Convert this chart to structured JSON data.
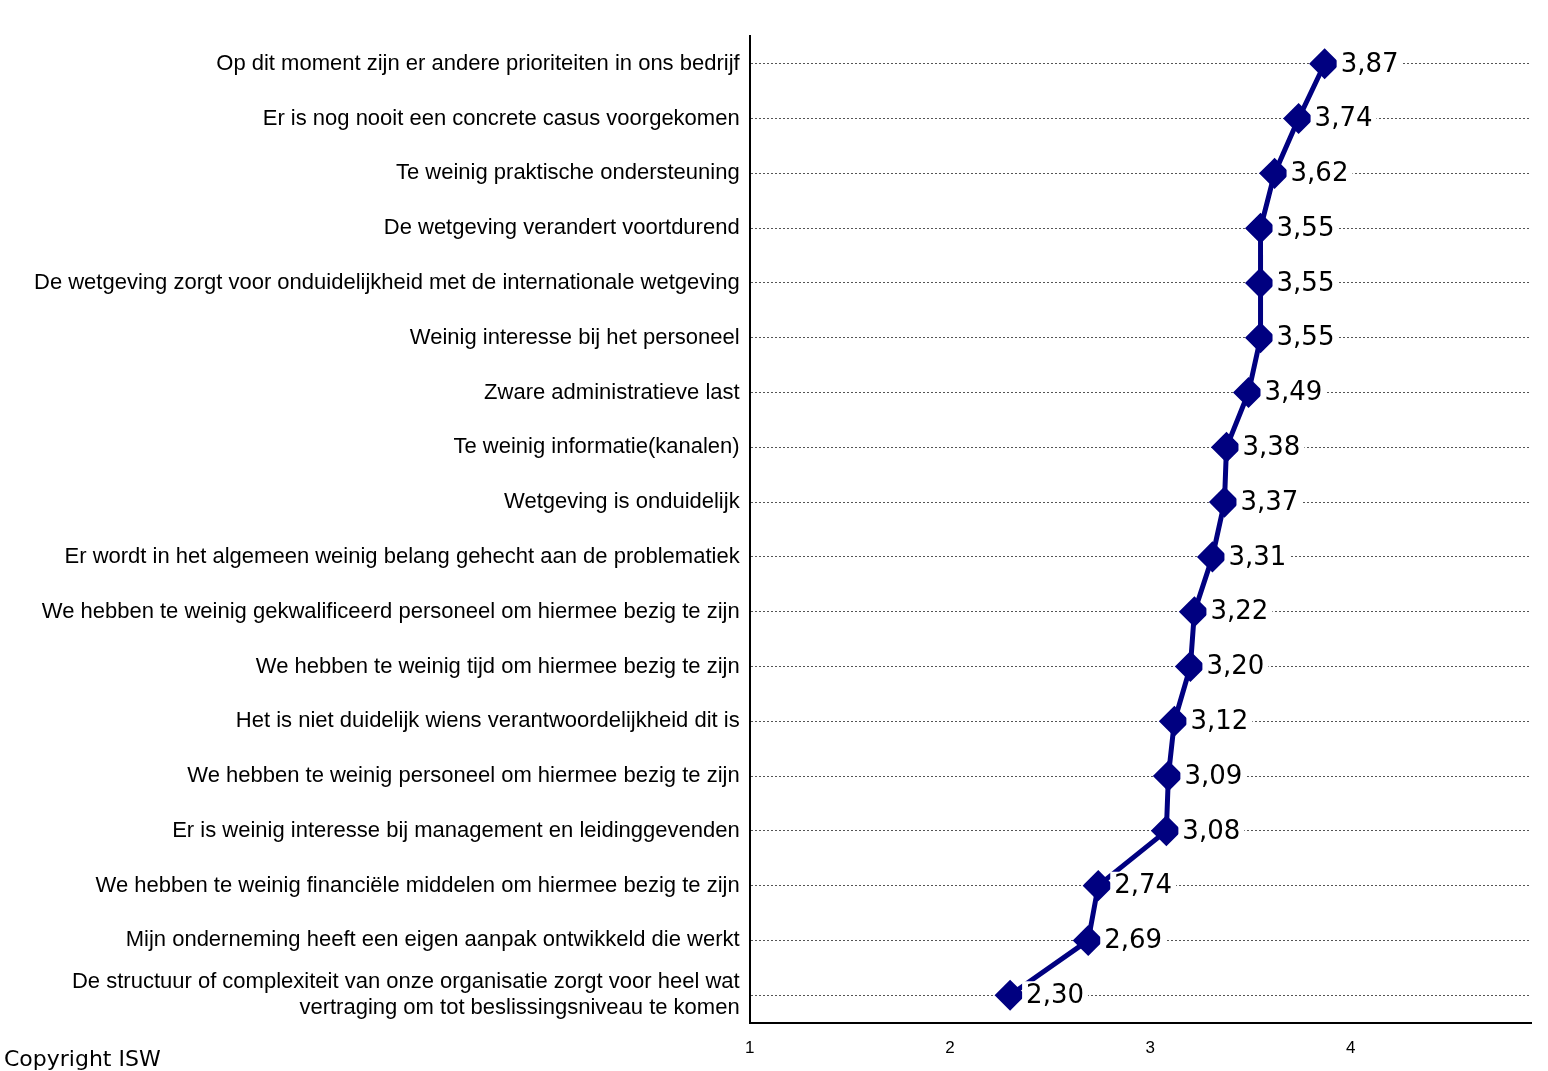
{
  "chart_data": {
    "type": "line",
    "orientation": "horizontal",
    "categories": [
      "Op dit moment zijn er andere prioriteiten in ons bedrijf",
      "Er is nog nooit een concrete casus voorgekomen",
      "Te weinig praktische ondersteuning",
      "De wetgeving verandert voortdurend",
      "De wetgeving zorgt voor onduidelijkheid met de internationale wetgeving",
      "Weinig interesse bij het personeel",
      "Zware administratieve last",
      "Te weinig informatie(kanalen)",
      "Wetgeving is onduidelijk",
      "Er wordt in het algemeen weinig belang gehecht aan de problematiek",
      "We hebben te weinig gekwalificeerd personeel om hiermee bezig te zijn",
      "We hebben te weinig tijd om hiermee bezig te zijn",
      "Het is niet duidelijk wiens verantwoordelijkheid dit is",
      "We hebben te weinig personeel om hiermee bezig te zijn",
      "Er is weinig interesse bij management en leidinggevenden",
      "We hebben te weinig financiële middelen om hiermee bezig te zijn",
      "Mijn onderneming heeft een eigen aanpak ontwikkeld die werkt",
      "De structuur of complexiteit van onze organisatie zorgt voor heel wat vertraging om tot beslissingsniveau te komen"
    ],
    "values": [
      3.87,
      3.74,
      3.62,
      3.55,
      3.55,
      3.55,
      3.49,
      3.38,
      3.37,
      3.31,
      3.22,
      3.2,
      3.12,
      3.09,
      3.08,
      2.74,
      2.69,
      2.3
    ],
    "value_labels": [
      "3,87",
      "3,74",
      "3,62",
      "3,55",
      "3,55",
      "3,55",
      "3,49",
      "3,38",
      "3,37",
      "3,31",
      "3,22",
      "3,20",
      "3,12",
      "3,09",
      "3,08",
      "2,74",
      "2,69",
      "2,30"
    ],
    "color": "#000080",
    "marker": "diamond",
    "grid": "y",
    "xlim": [
      1,
      4.9
    ],
    "xticks": [
      1,
      2,
      3,
      4
    ],
    "annotations": [
      "Copyright ISW"
    ]
  }
}
